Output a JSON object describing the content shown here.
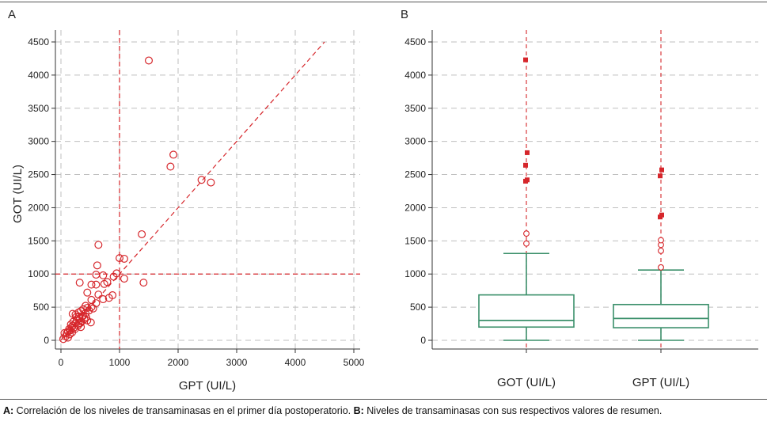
{
  "caption": {
    "a_tag": "A:",
    "a_text": " Correlación de los niveles de transaminasas en el primer día postoperatorio. ",
    "b_tag": "B:",
    "b_text": " Niveles de transaminasas con sus respectivos valores de resumen."
  },
  "colors": {
    "red": "#d6262b",
    "green": "#3a8f6a",
    "grid": "#bfbfbf",
    "axis": "#333333"
  },
  "chart_data": [
    {
      "type": "scatter",
      "panel_label": "A",
      "xlabel": "GPT (UI/L)",
      "ylabel": "GOT (UI/L)",
      "xlim": [
        0,
        5000
      ],
      "ylim": [
        0,
        4500
      ],
      "xticks": [
        0,
        1000,
        2000,
        3000,
        4000,
        5000
      ],
      "yticks": [
        0,
        500,
        1000,
        1500,
        2000,
        2500,
        3000,
        3500,
        4000,
        4500
      ],
      "reference_lines": {
        "x": 1000,
        "y": 1000,
        "diagonal": [
          [
            0,
            0
          ],
          [
            4500,
            4500
          ]
        ]
      },
      "points": [
        [
          1500,
          4220
        ],
        [
          1920,
          2800
        ],
        [
          1870,
          2620
        ],
        [
          2400,
          2420
        ],
        [
          2560,
          2380
        ],
        [
          1380,
          1600
        ],
        [
          640,
          1440
        ],
        [
          1000,
          1240
        ],
        [
          1080,
          1230
        ],
        [
          620,
          1130
        ],
        [
          600,
          990
        ],
        [
          720,
          980
        ],
        [
          950,
          1010
        ],
        [
          900,
          960
        ],
        [
          1080,
          930
        ],
        [
          1410,
          870
        ],
        [
          320,
          870
        ],
        [
          520,
          840
        ],
        [
          600,
          840
        ],
        [
          790,
          880
        ],
        [
          740,
          850
        ],
        [
          450,
          720
        ],
        [
          640,
          690
        ],
        [
          880,
          680
        ],
        [
          820,
          640
        ],
        [
          720,
          620
        ],
        [
          520,
          610
        ],
        [
          600,
          560
        ],
        [
          420,
          520
        ],
        [
          520,
          500
        ],
        [
          450,
          490
        ],
        [
          380,
          470
        ],
        [
          340,
          440
        ],
        [
          300,
          420
        ],
        [
          250,
          390
        ],
        [
          200,
          400
        ],
        [
          260,
          350
        ],
        [
          450,
          300
        ],
        [
          400,
          320
        ],
        [
          350,
          280
        ],
        [
          300,
          250
        ],
        [
          250,
          260
        ],
        [
          200,
          220
        ],
        [
          180,
          200
        ],
        [
          220,
          190
        ],
        [
          160,
          150
        ],
        [
          120,
          130
        ],
        [
          100,
          110
        ],
        [
          150,
          90
        ],
        [
          60,
          110
        ],
        [
          80,
          60
        ],
        [
          120,
          40
        ],
        [
          40,
          20
        ],
        [
          320,
          330
        ],
        [
          380,
          370
        ],
        [
          420,
          410
        ],
        [
          480,
          450
        ],
        [
          550,
          480
        ],
        [
          340,
          200
        ],
        [
          290,
          220
        ],
        [
          190,
          120
        ],
        [
          240,
          170
        ],
        [
          430,
          350
        ],
        [
          510,
          270
        ],
        [
          360,
          360
        ],
        [
          270,
          300
        ],
        [
          310,
          360
        ],
        [
          210,
          280
        ],
        [
          170,
          240
        ],
        [
          140,
          170
        ],
        [
          330,
          260
        ]
      ]
    },
    {
      "type": "box",
      "panel_label": "B",
      "categories": [
        "GOT (UI/L)",
        "GPT (UI/L)"
      ],
      "ylim": [
        0,
        4500
      ],
      "yticks": [
        0,
        500,
        1000,
        1500,
        2000,
        2500,
        3000,
        3500,
        4000,
        4500
      ],
      "series": [
        {
          "name": "GOT (UI/L)",
          "min": 0,
          "q1": 200,
          "median": 300,
          "q3": 685,
          "whisker_high": 1310,
          "outliers": [
            1460,
            1610
          ],
          "extremes": [
            2400,
            2420,
            2640,
            2830,
            4230
          ]
        },
        {
          "name": "GPT (UI/L)",
          "min": 0,
          "q1": 190,
          "median": 330,
          "q3": 540,
          "whisker_high": 1060,
          "outliers": [
            1100,
            1350,
            1440,
            1510
          ],
          "extremes": [
            1860,
            1890,
            2480,
            2570
          ]
        }
      ]
    }
  ]
}
